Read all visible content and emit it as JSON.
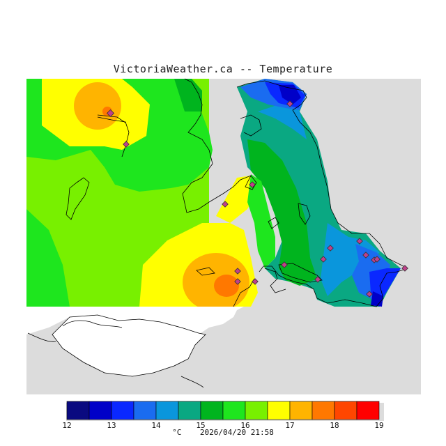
{
  "title": "VictoriaWeather.ca -- Temperature",
  "colors": {
    "background_land": "#dcdcdc",
    "water_outline": "#000000",
    "station_marker": "#c0408a"
  },
  "legend": {
    "unit": "°C",
    "timestamp": "2026/04/20 21:58",
    "ticks": [
      "12",
      "13",
      "14",
      "15",
      "16",
      "17",
      "18",
      "19"
    ],
    "bands": [
      {
        "from": 12,
        "to": 12.5,
        "color": "#0a0a80"
      },
      {
        "from": 12.5,
        "to": 13,
        "color": "#0000c8"
      },
      {
        "from": 13,
        "to": 13.5,
        "color": "#0a28ff"
      },
      {
        "from": 13.5,
        "to": 14,
        "color": "#1a6cf0"
      },
      {
        "from": 14,
        "to": 14.5,
        "color": "#0a96dc"
      },
      {
        "from": 14.5,
        "to": 15,
        "color": "#0aa882"
      },
      {
        "from": 15,
        "to": 15.5,
        "color": "#00b41e"
      },
      {
        "from": 15.5,
        "to": 16,
        "color": "#1ee61e"
      },
      {
        "from": 16,
        "to": 16.5,
        "color": "#78f000"
      },
      {
        "from": 16.5,
        "to": 17,
        "color": "#ffff00"
      },
      {
        "from": 17,
        "to": 17.5,
        "color": "#ffb400"
      },
      {
        "from": 17.5,
        "to": 18,
        "color": "#ff7800"
      },
      {
        "from": 18,
        "to": 18.5,
        "color": "#ff4600"
      },
      {
        "from": 18.5,
        "to": 19,
        "color": "#ff0000"
      }
    ]
  }
}
